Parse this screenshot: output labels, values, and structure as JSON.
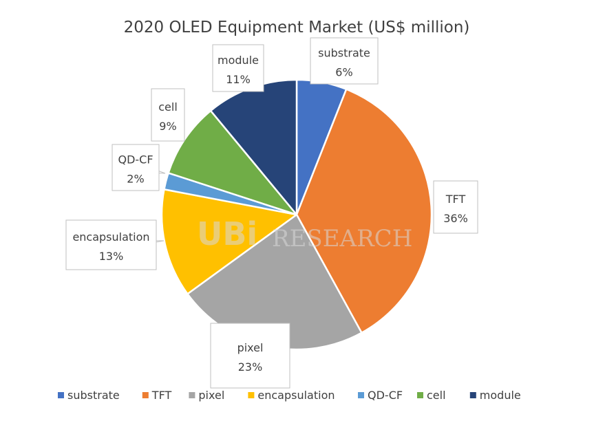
{
  "chart_data": {
    "type": "pie",
    "title": "2020 OLED Equipment Market (US$ million)",
    "watermark": "UBI RESEARCH",
    "slices": [
      {
        "name": "substrate",
        "percent": 6,
        "label_pct": "6%",
        "color": "#4472C4"
      },
      {
        "name": "TFT",
        "percent": 36,
        "label_pct": "36%",
        "color": "#ED7D31"
      },
      {
        "name": "pixel",
        "percent": 23,
        "label_pct": "23%",
        "color": "#A5A5A5"
      },
      {
        "name": "encapsulation",
        "percent": 13,
        "label_pct": "13%",
        "color": "#FFC000"
      },
      {
        "name": "QD-CF",
        "percent": 2,
        "label_pct": "2%",
        "color": "#5B9BD5"
      },
      {
        "name": "cell",
        "percent": 9,
        "label_pct": "9%",
        "color": "#70AD47"
      },
      {
        "name": "module",
        "percent": 11,
        "label_pct": "11%",
        "color": "#264478"
      }
    ],
    "legend": {
      "position": "bottom"
    }
  }
}
